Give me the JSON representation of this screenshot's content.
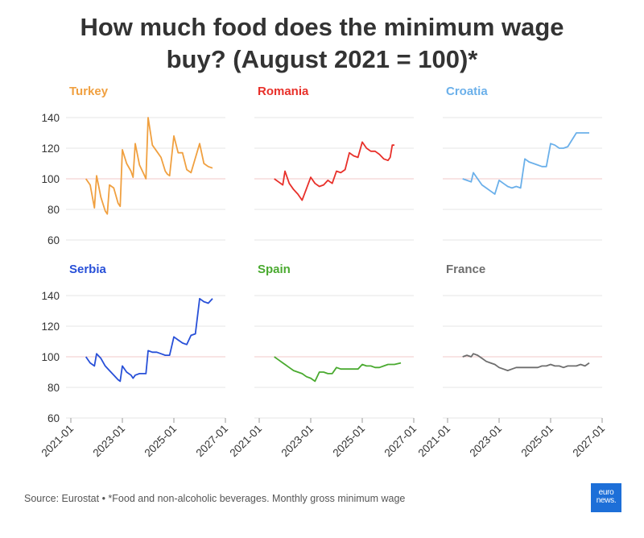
{
  "title_line1": "How much food does the minimum wage",
  "title_line2": "buy? (August 2021 = 100)*",
  "source": "Source: Eurostat • *Food and non-alcoholic beverages. Monthly gross minimum wage",
  "logo_line1": "euro",
  "logo_line2": "news.",
  "colors": {
    "Turkey": "#f0a040",
    "Romania": "#e8302a",
    "Croatia": "#6bb0ea",
    "Serbia": "#2850d8",
    "Spain": "#4aaa30",
    "France": "#6e6e6e",
    "reference": "#f0c8c8",
    "grid": "#e6e6e6"
  },
  "chart_data": {
    "type": "line",
    "layout": "small-multiples",
    "reference_value": 100,
    "ylim": [
      60,
      140
    ],
    "yticks": [
      60,
      80,
      100,
      120,
      140
    ],
    "xlim": [
      "2021-01",
      "2027-01"
    ],
    "xticks": [
      "2021-01",
      "2023-01",
      "2025-01",
      "2027-01"
    ],
    "panels": [
      {
        "name": "Turkey",
        "series": [
          [
            "2021-08",
            100
          ],
          [
            "2021-10",
            96
          ],
          [
            "2021-12",
            81
          ],
          [
            "2022-01",
            102
          ],
          [
            "2022-03",
            88
          ],
          [
            "2022-05",
            79
          ],
          [
            "2022-06",
            77
          ],
          [
            "2022-07",
            96
          ],
          [
            "2022-09",
            94
          ],
          [
            "2022-11",
            84
          ],
          [
            "2022-12",
            82
          ],
          [
            "2023-01",
            119
          ],
          [
            "2023-03",
            110
          ],
          [
            "2023-05",
            105
          ],
          [
            "2023-06",
            101
          ],
          [
            "2023-07",
            123
          ],
          [
            "2023-09",
            109
          ],
          [
            "2023-11",
            103
          ],
          [
            "2023-12",
            100
          ],
          [
            "2024-01",
            140
          ],
          [
            "2024-03",
            122
          ],
          [
            "2024-05",
            118
          ],
          [
            "2024-07",
            114
          ],
          [
            "2024-09",
            105
          ],
          [
            "2024-10",
            103
          ],
          [
            "2024-11",
            102
          ],
          [
            "2025-01",
            128
          ],
          [
            "2025-03",
            117
          ],
          [
            "2025-05",
            117
          ],
          [
            "2025-07",
            106
          ],
          [
            "2025-09",
            104
          ],
          [
            "2026-01",
            123
          ],
          [
            "2026-03",
            110
          ],
          [
            "2026-05",
            108
          ],
          [
            "2026-07",
            107
          ]
        ]
      },
      {
        "name": "Romania",
        "series": [
          [
            "2021-08",
            100
          ],
          [
            "2021-10",
            98
          ],
          [
            "2021-12",
            96
          ],
          [
            "2022-01",
            105
          ],
          [
            "2022-03",
            97
          ],
          [
            "2022-05",
            93
          ],
          [
            "2022-07",
            90
          ],
          [
            "2022-09",
            86
          ],
          [
            "2023-01",
            101
          ],
          [
            "2023-03",
            97
          ],
          [
            "2023-05",
            95
          ],
          [
            "2023-07",
            96
          ],
          [
            "2023-09",
            99
          ],
          [
            "2023-11",
            97
          ],
          [
            "2024-01",
            105
          ],
          [
            "2024-03",
            104
          ],
          [
            "2024-05",
            106
          ],
          [
            "2024-07",
            117
          ],
          [
            "2024-09",
            115
          ],
          [
            "2024-11",
            114
          ],
          [
            "2025-01",
            124
          ],
          [
            "2025-03",
            120
          ],
          [
            "2025-05",
            118
          ],
          [
            "2025-07",
            118
          ],
          [
            "2025-09",
            116
          ],
          [
            "2025-11",
            113
          ],
          [
            "2026-01",
            112
          ],
          [
            "2026-02",
            114
          ],
          [
            "2026-03",
            122
          ],
          [
            "2026-04",
            122
          ]
        ]
      },
      {
        "name": "Croatia",
        "series": [
          [
            "2021-08",
            100
          ],
          [
            "2021-10",
            99
          ],
          [
            "2021-12",
            98
          ],
          [
            "2022-01",
            104
          ],
          [
            "2022-03",
            100
          ],
          [
            "2022-05",
            96
          ],
          [
            "2022-07",
            94
          ],
          [
            "2022-09",
            92
          ],
          [
            "2022-11",
            90
          ],
          [
            "2023-01",
            99
          ],
          [
            "2023-03",
            97
          ],
          [
            "2023-05",
            95
          ],
          [
            "2023-07",
            94
          ],
          [
            "2023-09",
            95
          ],
          [
            "2023-11",
            94
          ],
          [
            "2024-01",
            113
          ],
          [
            "2024-03",
            111
          ],
          [
            "2024-05",
            110
          ],
          [
            "2024-07",
            109
          ],
          [
            "2024-09",
            108
          ],
          [
            "2024-11",
            108
          ],
          [
            "2025-01",
            123
          ],
          [
            "2025-03",
            122
          ],
          [
            "2025-05",
            120
          ],
          [
            "2025-07",
            120
          ],
          [
            "2025-09",
            121
          ],
          [
            "2026-01",
            130
          ],
          [
            "2026-04",
            130
          ],
          [
            "2026-07",
            130
          ]
        ]
      },
      {
        "name": "Serbia",
        "series": [
          [
            "2021-08",
            100
          ],
          [
            "2021-10",
            96
          ],
          [
            "2021-12",
            94
          ],
          [
            "2022-01",
            102
          ],
          [
            "2022-03",
            99
          ],
          [
            "2022-05",
            94
          ],
          [
            "2022-07",
            91
          ],
          [
            "2022-09",
            88
          ],
          [
            "2022-11",
            85
          ],
          [
            "2022-12",
            84
          ],
          [
            "2023-01",
            94
          ],
          [
            "2023-03",
            90
          ],
          [
            "2023-05",
            88
          ],
          [
            "2023-06",
            86
          ],
          [
            "2023-07",
            88
          ],
          [
            "2023-09",
            89
          ],
          [
            "2023-11",
            89
          ],
          [
            "2023-12",
            89
          ],
          [
            "2024-01",
            104
          ],
          [
            "2024-03",
            103
          ],
          [
            "2024-05",
            103
          ],
          [
            "2024-07",
            102
          ],
          [
            "2024-09",
            101
          ],
          [
            "2024-11",
            101
          ],
          [
            "2025-01",
            113
          ],
          [
            "2025-03",
            111
          ],
          [
            "2025-05",
            109
          ],
          [
            "2025-07",
            108
          ],
          [
            "2025-09",
            114
          ],
          [
            "2025-11",
            115
          ],
          [
            "2026-01",
            138
          ],
          [
            "2026-03",
            136
          ],
          [
            "2026-05",
            135
          ],
          [
            "2026-07",
            138
          ]
        ]
      },
      {
        "name": "Spain",
        "series": [
          [
            "2021-08",
            100
          ],
          [
            "2021-10",
            98
          ],
          [
            "2021-12",
            96
          ],
          [
            "2022-01",
            95
          ],
          [
            "2022-03",
            93
          ],
          [
            "2022-05",
            91
          ],
          [
            "2022-07",
            90
          ],
          [
            "2022-09",
            89
          ],
          [
            "2022-11",
            87
          ],
          [
            "2023-01",
            86
          ],
          [
            "2023-03",
            84
          ],
          [
            "2023-05",
            90
          ],
          [
            "2023-07",
            90
          ],
          [
            "2023-09",
            89
          ],
          [
            "2023-11",
            89
          ],
          [
            "2024-01",
            93
          ],
          [
            "2024-03",
            92
          ],
          [
            "2024-05",
            92
          ],
          [
            "2024-07",
            92
          ],
          [
            "2024-09",
            92
          ],
          [
            "2024-11",
            92
          ],
          [
            "2025-01",
            95
          ],
          [
            "2025-03",
            94
          ],
          [
            "2025-05",
            94
          ],
          [
            "2025-07",
            93
          ],
          [
            "2025-09",
            93
          ],
          [
            "2025-11",
            94
          ],
          [
            "2026-01",
            95
          ],
          [
            "2026-04",
            95
          ],
          [
            "2026-07",
            96
          ]
        ]
      },
      {
        "name": "France",
        "series": [
          [
            "2021-08",
            100
          ],
          [
            "2021-10",
            101
          ],
          [
            "2021-12",
            100
          ],
          [
            "2022-01",
            102
          ],
          [
            "2022-03",
            101
          ],
          [
            "2022-05",
            99
          ],
          [
            "2022-07",
            97
          ],
          [
            "2022-09",
            96
          ],
          [
            "2022-11",
            95
          ],
          [
            "2023-01",
            93
          ],
          [
            "2023-03",
            92
          ],
          [
            "2023-05",
            91
          ],
          [
            "2023-07",
            92
          ],
          [
            "2023-09",
            93
          ],
          [
            "2023-11",
            93
          ],
          [
            "2024-01",
            93
          ],
          [
            "2024-03",
            93
          ],
          [
            "2024-05",
            93
          ],
          [
            "2024-07",
            93
          ],
          [
            "2024-09",
            94
          ],
          [
            "2024-11",
            94
          ],
          [
            "2025-01",
            95
          ],
          [
            "2025-03",
            94
          ],
          [
            "2025-05",
            94
          ],
          [
            "2025-07",
            93
          ],
          [
            "2025-09",
            94
          ],
          [
            "2025-11",
            94
          ],
          [
            "2026-01",
            94
          ],
          [
            "2026-03",
            95
          ],
          [
            "2026-05",
            94
          ],
          [
            "2026-07",
            96
          ]
        ]
      }
    ]
  }
}
